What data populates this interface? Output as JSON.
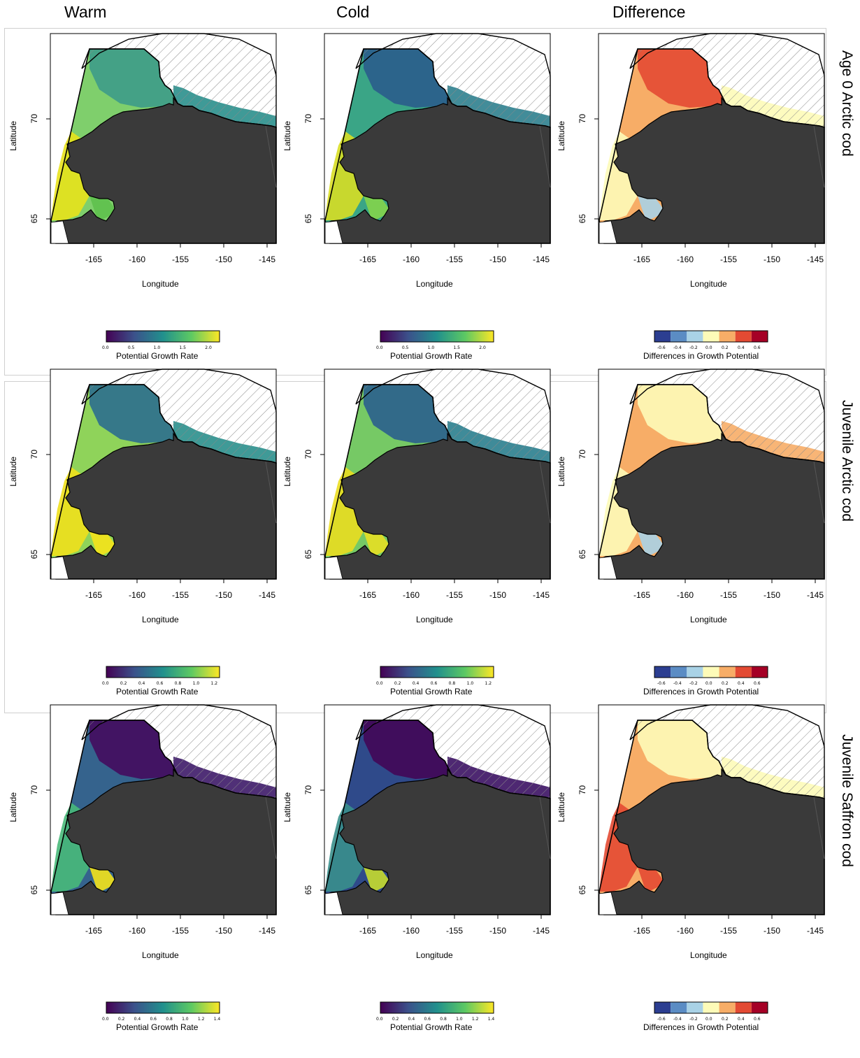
{
  "column_headers": [
    "Warm",
    "Cold",
    "Difference"
  ],
  "rows": [
    {
      "label": "Age 0 Arctic cod",
      "growth_ticks": [
        "0.0",
        "0.5",
        "1.0",
        "1.5",
        "2.0"
      ],
      "growth_max": 2.2,
      "panels": [
        {
          "scenario": "Warm",
          "kind": "growth",
          "palette": "warm-a0"
        },
        {
          "scenario": "Cold",
          "kind": "growth",
          "palette": "cold-a0"
        },
        {
          "scenario": "Difference",
          "kind": "diff",
          "palette": "diff-a0"
        }
      ]
    },
    {
      "label": "Juvenile Arctic cod",
      "growth_ticks": [
        "0.0",
        "0.2",
        "0.4",
        "0.6",
        "0.8",
        "1.0",
        "1.2"
      ],
      "growth_max": 1.25,
      "panels": [
        {
          "scenario": "Warm",
          "kind": "growth",
          "palette": "warm-juv"
        },
        {
          "scenario": "Cold",
          "kind": "growth",
          "palette": "cold-juv"
        },
        {
          "scenario": "Difference",
          "kind": "diff",
          "palette": "diff-juv"
        }
      ]
    },
    {
      "label": "Juvenile Saffron cod",
      "growth_ticks": [
        "0.0",
        "0.2",
        "0.4",
        "0.6",
        "0.8",
        "1.0",
        "1.2",
        "1.4"
      ],
      "growth_max": 1.42,
      "panels": [
        {
          "scenario": "Warm",
          "kind": "growth",
          "palette": "warm-saf"
        },
        {
          "scenario": "Cold",
          "kind": "growth",
          "palette": "cold-saf"
        },
        {
          "scenario": "Difference",
          "kind": "diff",
          "palette": "diff-saf"
        }
      ]
    }
  ],
  "axes": {
    "xlabel": "Longitude",
    "ylabel": "Latitude",
    "xticks": [
      "-165",
      "-160",
      "-155",
      "-150",
      "-145"
    ],
    "yticks": [
      "65",
      "70"
    ]
  },
  "legends": {
    "growth_title": "Potential Growth Rate",
    "diff_title": "Differences in Growth Potential",
    "diff_ticks": [
      "-0.6",
      "-0.4",
      "-0.2",
      "0.0",
      "0.2",
      "0.4",
      "0.6"
    ]
  },
  "chart_data": {
    "type": "heatmap",
    "title": "",
    "xlabel": "Longitude",
    "ylabel": "Latitude",
    "xlim": [
      -168,
      -142
    ],
    "ylim": [
      64,
      73
    ],
    "panels": [
      {
        "row": "Age 0 Arctic cod",
        "column": "Warm",
        "variable": "Potential Growth Rate",
        "range": [
          0.0,
          2.2
        ]
      },
      {
        "row": "Age 0 Arctic cod",
        "column": "Cold",
        "variable": "Potential Growth Rate",
        "range": [
          0.0,
          2.2
        ]
      },
      {
        "row": "Age 0 Arctic cod",
        "column": "Difference",
        "variable": "Differences in Growth Potential",
        "range": [
          -0.7,
          0.7
        ]
      },
      {
        "row": "Juvenile Arctic cod",
        "column": "Warm",
        "variable": "Potential Growth Rate",
        "range": [
          0.0,
          1.25
        ]
      },
      {
        "row": "Juvenile Arctic cod",
        "column": "Cold",
        "variable": "Potential Growth Rate",
        "range": [
          0.0,
          1.25
        ]
      },
      {
        "row": "Juvenile Arctic cod",
        "column": "Difference",
        "variable": "Differences in Growth Potential",
        "range": [
          -0.7,
          0.7
        ]
      },
      {
        "row": "Juvenile Saffron cod",
        "column": "Warm",
        "variable": "Potential Growth Rate",
        "range": [
          0.0,
          1.42
        ]
      },
      {
        "row": "Juvenile Saffron cod",
        "column": "Cold",
        "variable": "Potential Growth Rate",
        "range": [
          0.0,
          1.42
        ]
      },
      {
        "row": "Juvenile Saffron cod",
        "column": "Difference",
        "variable": "Differences in Growth Potential",
        "range": [
          -0.7,
          0.7
        ]
      }
    ],
    "colors": {
      "land": "#3a3a3a",
      "viridis": [
        "#440154",
        "#3b528b",
        "#21908d",
        "#5dc963",
        "#fde725"
      ],
      "diff": [
        "#2c3e91",
        "#5b8cc4",
        "#a9d2e6",
        "#fdfbb8",
        "#f7ad67",
        "#e34a33",
        "#a50026"
      ]
    }
  }
}
